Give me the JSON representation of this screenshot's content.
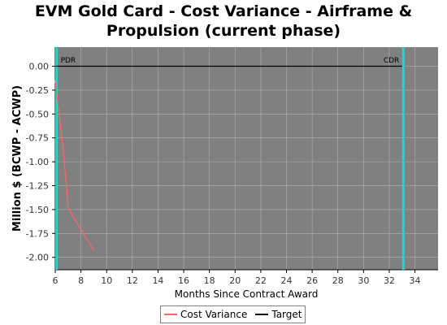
{
  "chart_data": {
    "type": "line",
    "title_lines": [
      "EVM Gold Card - Cost Variance - Airframe &",
      "Propulsion (current phase)"
    ],
    "xlabel": "Months Since Contract Award",
    "ylabel": "Million $ (BCWP - ACWP)",
    "xlim": [
      6,
      35.8
    ],
    "ylim": [
      -2.13,
      0.2
    ],
    "xticks": [
      6,
      8,
      10,
      12,
      14,
      16,
      18,
      20,
      22,
      24,
      26,
      28,
      30,
      32,
      34
    ],
    "yticks": [
      0.0,
      -0.25,
      -0.5,
      -0.75,
      -1.0,
      -1.25,
      -1.5,
      -1.75,
      -2.0
    ],
    "ytick_labels": [
      "0.00",
      "-0.25",
      "-0.50",
      "-0.75",
      "-1.00",
      "-1.25",
      "-1.50",
      "-1.75",
      "-2.00"
    ],
    "grid": true,
    "legend_position": "bottom",
    "background_color": "#808080",
    "series": [
      {
        "name": "Cost Variance",
        "color": "#ff6666",
        "x": [
          6.0,
          6.6,
          6.9,
          7.0,
          7.5,
          8.2,
          9.0
        ],
        "y": [
          -0.15,
          -0.85,
          -1.3,
          -1.48,
          -1.6,
          -1.75,
          -1.93
        ]
      },
      {
        "name": "Target",
        "color": "#000000",
        "x": [
          6.0,
          33.0
        ],
        "y": [
          0.0,
          0.0
        ]
      }
    ],
    "milestones": [
      {
        "label": "PDR",
        "x": 6.1,
        "color": "#33cccc"
      },
      {
        "label": "CDR",
        "x": 33.1,
        "color": "#33cccc"
      }
    ]
  }
}
